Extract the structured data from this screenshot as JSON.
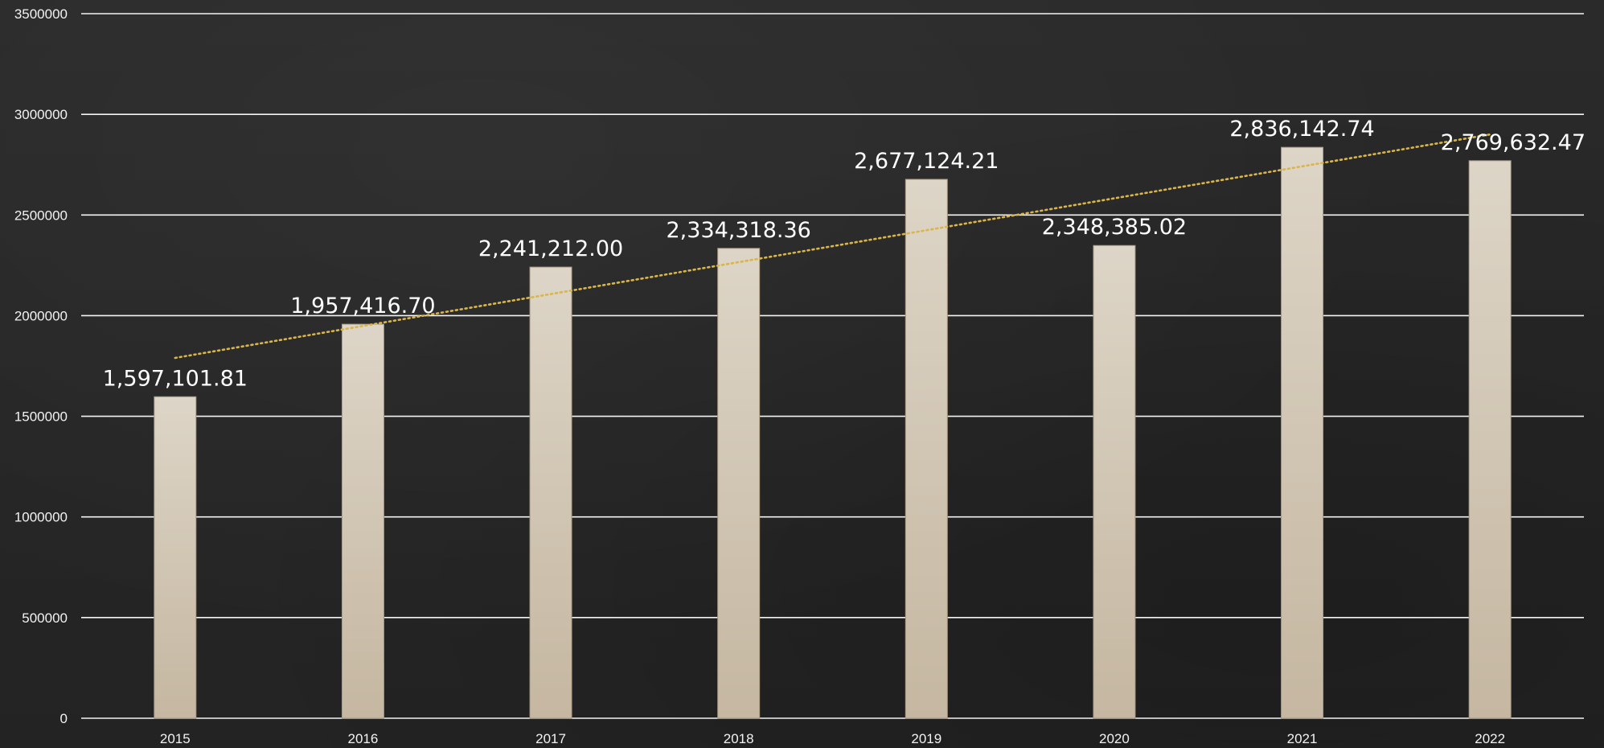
{
  "chart_data": {
    "type": "bar",
    "categories": [
      "2015",
      "2016",
      "2017",
      "2018",
      "2019",
      "2020",
      "2021",
      "2022"
    ],
    "values": [
      1597101.81,
      1957416.7,
      2241212.0,
      2334318.36,
      2677124.21,
      2348385.02,
      2836142.74,
      2769632.47
    ],
    "data_labels": [
      "1,597,101.81",
      "1,957,416.70",
      "2,241,212.00",
      "2,334,318.36",
      "2,677,124.21",
      "2,348,385.02",
      "2,836,142.74",
      "2,769,632.47"
    ],
    "y_ticks": [
      0,
      500000,
      1000000,
      1500000,
      2000000,
      2500000,
      3000000,
      3500000
    ],
    "y_tick_labels": [
      "0",
      "500000",
      "1000000",
      "1500000",
      "2000000",
      "2500000",
      "3000000",
      "3500000"
    ],
    "ylim": [
      0,
      3500000
    ],
    "title": "",
    "xlabel": "",
    "ylabel": "",
    "grid": true,
    "trendline": {
      "type": "linear",
      "style": "dotted",
      "color": "#d9b54a",
      "start_value": 1790000,
      "end_value": 2900000
    },
    "colors": {
      "bar_top": "#ddd5c7",
      "bar_bottom": "#c5b7a1",
      "bar_border": "#a89880",
      "gridline": "#ffffff",
      "text": "#ffffff",
      "background": "#262626"
    }
  }
}
